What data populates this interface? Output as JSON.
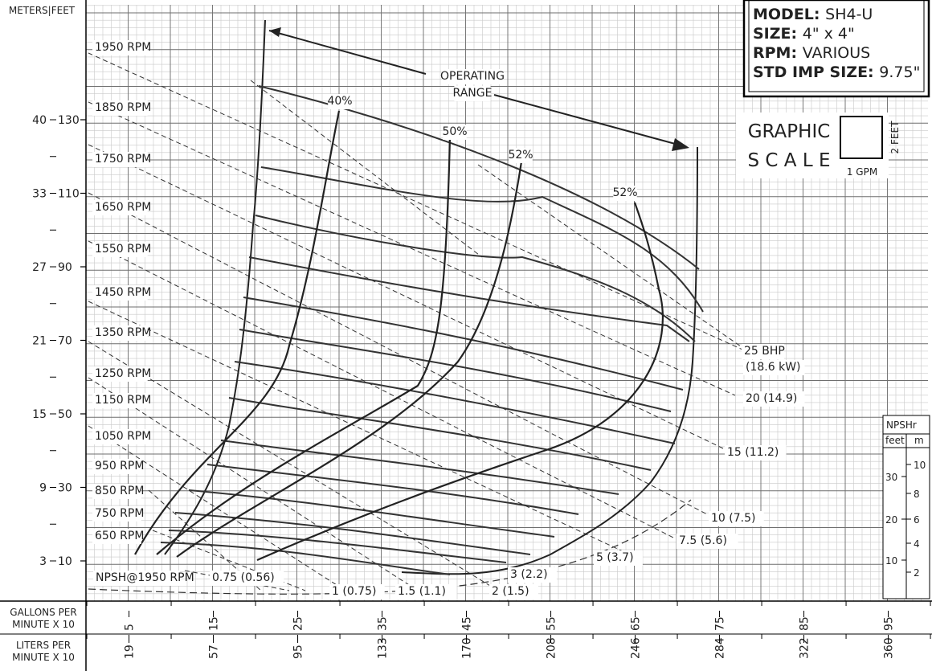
{
  "chart_data": {
    "type": "line",
    "title": "",
    "model_box": [
      {
        "key": "MODEL:",
        "value": "SH4-U"
      },
      {
        "key": "SIZE:",
        "value": "4\" x 4\""
      },
      {
        "key": "RPM:",
        "value": "VARIOUS"
      },
      {
        "key": "STD IMP SIZE:",
        "value": "9.75\""
      }
    ],
    "graphic_scale": {
      "word1": "GRAPHIC",
      "word2": "S C A L E",
      "x_unit": "1 GPM",
      "y_unit": "2 FEET"
    },
    "left_axis": {
      "meters_header": "METERS",
      "feet_header": "FEET",
      "meters_ticks": [
        "40",
        "33",
        "27",
        "21",
        "15",
        "9",
        "3"
      ],
      "feet_ticks": [
        "130",
        "110",
        "90",
        "70",
        "50",
        "30",
        "10"
      ],
      "feet_values": [
        130,
        110,
        90,
        70,
        50,
        30,
        10
      ]
    },
    "x_axis_gpm": {
      "label_line1": "GALLONS PER",
      "label_line2": "MINUTE X 10",
      "ticks": [
        "5",
        "15",
        "25",
        "35",
        "45",
        "55",
        "65",
        "75",
        "85",
        "95"
      ],
      "values": [
        5,
        15,
        25,
        35,
        45,
        55,
        65,
        75,
        85,
        95
      ]
    },
    "x_axis_lpm": {
      "label_line1": "LITERS PER",
      "label_line2": "MINUTE X 10",
      "ticks": [
        "19",
        "57",
        "95",
        "133",
        "170",
        "208",
        "246",
        "284",
        "322",
        "360"
      ]
    },
    "xlim": [
      0,
      100
    ],
    "ylim": [
      0,
      140
    ],
    "rpm_curves": [
      {
        "label": "1950 RPM",
        "x": [
          66.5,
          70
        ],
        "y": [
          27,
          110
        ]
      },
      {
        "label": "1850 RPM",
        "x": [
          10.2,
          31,
          36,
          68,
          73
        ],
        "y": [
          121,
          108,
          104,
          80,
          72
        ]
      },
      {
        "label": "1750 RPM",
        "x": [
          10.2,
          26,
          32,
          59.5,
          72
        ],
        "y": [
          104,
          100,
          98,
          80,
          70
        ]
      },
      {
        "label": "1650 RPM",
        "x": [
          10.2,
          20,
          27,
          51.5,
          70
        ],
        "y": [
          88,
          90,
          88,
          72,
          61
        ]
      },
      {
        "label": "1550 RPM",
        "x": [
          10.2,
          15,
          23,
          44.5,
          72
        ],
        "y": [
          73,
          80,
          78,
          64,
          53
        ]
      },
      {
        "label": "1450 RPM",
        "x": [
          10.2,
          12,
          19,
          38,
          69.5
        ],
        "y": [
          59,
          70,
          67,
          55,
          45
        ]
      },
      {
        "label": "1350 RPM",
        "x": [
          10.2,
          10,
          16,
          32,
          70
        ],
        "y": [
          50,
          60,
          59,
          49,
          39
        ]
      },
      {
        "label": "1250 RPM",
        "x": [
          10.2,
          10,
          13,
          27.5,
          67.5
        ],
        "y": [
          41,
          50,
          50,
          42,
          33
        ]
      },
      {
        "label": "1150 RPM",
        "x": [
          10.2,
          10,
          11,
          23,
          67
        ],
        "y": [
          33,
          42,
          42,
          35,
          27
        ]
      },
      {
        "label": "1050 RPM",
        "x": [
          10.2,
          10,
          9,
          19.5,
          61
        ],
        "y": [
          27,
          34,
          34,
          28,
          20
        ]
      },
      {
        "label": "950 RPM",
        "x": [
          10.2,
          10,
          7,
          15.5,
          58
        ],
        "y": [
          22,
          26,
          27,
          23,
          16
        ]
      },
      {
        "label": "850 RPM",
        "x": [
          10.2,
          10,
          5.5,
          12.5,
          54
        ],
        "y": [
          17,
          19,
          20,
          16,
          10
        ]
      },
      {
        "label": "750 RPM",
        "x": [
          10.2,
          10,
          4,
          9,
          49
        ],
        "y": [
          13,
          13.5,
          14,
          12,
          5
        ]
      },
      {
        "label": "650 RPM",
        "x": [
          10.2,
          10,
          4,
          9,
          39
        ],
        "y": [
          9,
          11,
          10,
          7,
          3
        ]
      }
    ],
    "efficiency_curves": [
      {
        "label": "40%",
        "value": 40
      },
      {
        "label": "50%",
        "value": 50
      },
      {
        "label": "52%",
        "value": 52
      },
      {
        "label": "52%",
        "value": 52
      }
    ],
    "bhp_lines": [
      {
        "label": "0.75 (0.56)"
      },
      {
        "label": "1 (0.75)"
      },
      {
        "label": "1.5 (1.1)"
      },
      {
        "label": "2 (1.5)"
      },
      {
        "label": "3 (2.2)"
      },
      {
        "label": "5 (3.7)"
      },
      {
        "label": "7.5 (5.6)"
      },
      {
        "label": "10 (7.5)"
      },
      {
        "label": "15 (11.2)"
      },
      {
        "label": "20 (14.9)"
      },
      {
        "label": "25 BHP"
      },
      {
        "label": "(18.6 kW)"
      }
    ],
    "operating_range_label": [
      "OPERATING",
      "RANGE"
    ],
    "npsh_label": "NPSH@1950 RPM",
    "npshr_axis": {
      "title": "NPSHr",
      "feet_header": "feet",
      "m_header": "m",
      "feet_ticks": [
        "30",
        "20",
        "10"
      ],
      "m_ticks": [
        "10",
        "8",
        "6",
        "4",
        "2"
      ]
    },
    "grid": true
  }
}
